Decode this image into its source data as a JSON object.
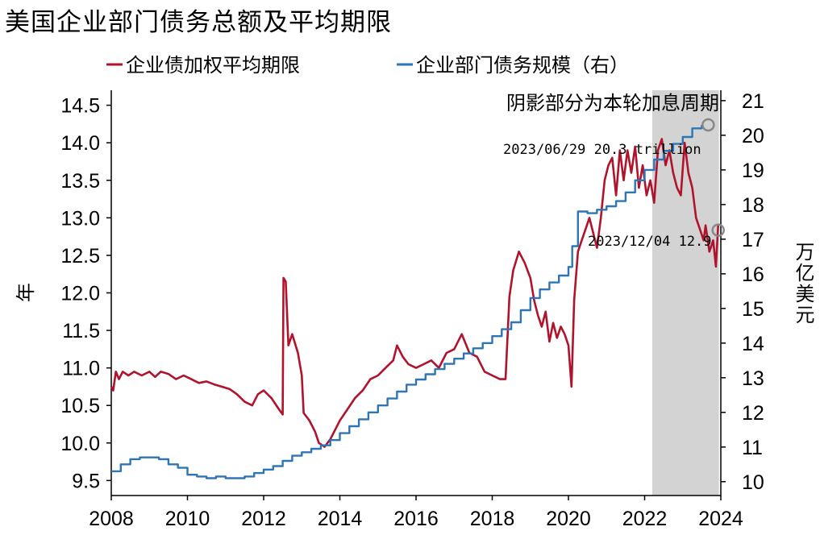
{
  "chart_data": {
    "type": "line",
    "title": "美国企业部门债务总额及平均期限",
    "xlabel": "",
    "ylabel_left": "年",
    "ylabel_right": "万亿美元",
    "xlim": [
      2008,
      2024
    ],
    "ylim_left": [
      9.3,
      14.7
    ],
    "ylim_right": [
      9.6,
      21.3
    ],
    "x_ticks": [
      "2008",
      "2010",
      "2012",
      "2014",
      "2016",
      "2018",
      "2020",
      "2022",
      "2024"
    ],
    "y_left_ticks": [
      "9.5",
      "10.0",
      "10.5",
      "11.0",
      "11.5",
      "12.0",
      "12.5",
      "13.0",
      "13.5",
      "14.0",
      "14.5"
    ],
    "y_right_ticks": [
      "10",
      "11",
      "12",
      "13",
      "14",
      "15",
      "16",
      "17",
      "18",
      "19",
      "20",
      "21"
    ],
    "legend_position": "top",
    "shaded_region": {
      "x": [
        2022.2,
        2023.95
      ],
      "label": "阴影部分为本轮加息周期",
      "color": "#d3d3d3"
    },
    "series": [
      {
        "name": "企业债加权平均期限",
        "axis": "left",
        "color": "#b0132b",
        "points": [
          [
            2008.0,
            10.75
          ],
          [
            2008.05,
            10.7
          ],
          [
            2008.12,
            10.95
          ],
          [
            2008.2,
            10.85
          ],
          [
            2008.3,
            10.95
          ],
          [
            2008.45,
            10.9
          ],
          [
            2008.6,
            10.95
          ],
          [
            2008.8,
            10.9
          ],
          [
            2009.0,
            10.95
          ],
          [
            2009.15,
            10.88
          ],
          [
            2009.3,
            10.95
          ],
          [
            2009.5,
            10.92
          ],
          [
            2009.7,
            10.85
          ],
          [
            2009.9,
            10.9
          ],
          [
            2010.1,
            10.85
          ],
          [
            2010.3,
            10.8
          ],
          [
            2010.5,
            10.82
          ],
          [
            2010.7,
            10.78
          ],
          [
            2010.9,
            10.75
          ],
          [
            2011.1,
            10.72
          ],
          [
            2011.3,
            10.65
          ],
          [
            2011.5,
            10.55
          ],
          [
            2011.7,
            10.5
          ],
          [
            2011.85,
            10.65
          ],
          [
            2012.0,
            10.7
          ],
          [
            2012.2,
            10.6
          ],
          [
            2012.4,
            10.45
          ],
          [
            2012.5,
            10.38
          ],
          [
            2012.52,
            12.2
          ],
          [
            2012.58,
            12.15
          ],
          [
            2012.65,
            11.3
          ],
          [
            2012.75,
            11.45
          ],
          [
            2012.9,
            11.2
          ],
          [
            2013.0,
            10.9
          ],
          [
            2013.05,
            10.4
          ],
          [
            2013.2,
            10.3
          ],
          [
            2013.35,
            10.15
          ],
          [
            2013.45,
            10.0
          ],
          [
            2013.6,
            9.95
          ],
          [
            2013.75,
            10.05
          ],
          [
            2013.9,
            10.2
          ],
          [
            2014.0,
            10.3
          ],
          [
            2014.2,
            10.45
          ],
          [
            2014.4,
            10.6
          ],
          [
            2014.6,
            10.7
          ],
          [
            2014.8,
            10.85
          ],
          [
            2015.0,
            10.9
          ],
          [
            2015.2,
            11.0
          ],
          [
            2015.4,
            11.1
          ],
          [
            2015.5,
            11.3
          ],
          [
            2015.65,
            11.15
          ],
          [
            2015.8,
            11.05
          ],
          [
            2016.0,
            11.0
          ],
          [
            2016.2,
            11.05
          ],
          [
            2016.4,
            11.1
          ],
          [
            2016.6,
            11.0
          ],
          [
            2016.8,
            11.2
          ],
          [
            2017.0,
            11.25
          ],
          [
            2017.2,
            11.45
          ],
          [
            2017.4,
            11.2
          ],
          [
            2017.6,
            11.15
          ],
          [
            2017.8,
            10.95
          ],
          [
            2018.0,
            10.9
          ],
          [
            2018.2,
            10.85
          ],
          [
            2018.35,
            10.85
          ],
          [
            2018.45,
            11.95
          ],
          [
            2018.55,
            12.3
          ],
          [
            2018.7,
            12.55
          ],
          [
            2018.85,
            12.4
          ],
          [
            2019.0,
            12.2
          ],
          [
            2019.1,
            11.9
          ],
          [
            2019.2,
            11.7
          ],
          [
            2019.3,
            11.55
          ],
          [
            2019.4,
            11.75
          ],
          [
            2019.5,
            11.35
          ],
          [
            2019.6,
            11.6
          ],
          [
            2019.7,
            11.4
          ],
          [
            2019.8,
            11.55
          ],
          [
            2019.9,
            11.45
          ],
          [
            2020.0,
            11.3
          ],
          [
            2020.08,
            10.75
          ],
          [
            2020.15,
            11.9
          ],
          [
            2020.25,
            12.55
          ],
          [
            2020.35,
            12.7
          ],
          [
            2020.45,
            12.85
          ],
          [
            2020.55,
            13.0
          ],
          [
            2020.65,
            12.8
          ],
          [
            2020.75,
            12.6
          ],
          [
            2020.85,
            13.0
          ],
          [
            2020.95,
            13.5
          ],
          [
            2021.05,
            13.7
          ],
          [
            2021.15,
            13.8
          ],
          [
            2021.25,
            13.3
          ],
          [
            2021.35,
            13.9
          ],
          [
            2021.45,
            13.5
          ],
          [
            2021.55,
            13.9
          ],
          [
            2021.65,
            13.6
          ],
          [
            2021.75,
            13.95
          ],
          [
            2021.85,
            13.4
          ],
          [
            2021.95,
            13.7
          ],
          [
            2022.05,
            13.3
          ],
          [
            2022.15,
            13.5
          ],
          [
            2022.25,
            13.2
          ],
          [
            2022.35,
            13.9
          ],
          [
            2022.45,
            14.05
          ],
          [
            2022.55,
            13.7
          ],
          [
            2022.65,
            13.9
          ],
          [
            2022.75,
            13.6
          ],
          [
            2022.85,
            13.4
          ],
          [
            2022.95,
            13.3
          ],
          [
            2023.05,
            14.0
          ],
          [
            2023.15,
            13.6
          ],
          [
            2023.25,
            13.4
          ],
          [
            2023.35,
            13.0
          ],
          [
            2023.45,
            12.85
          ],
          [
            2023.55,
            12.7
          ],
          [
            2023.6,
            12.9
          ],
          [
            2023.7,
            12.55
          ],
          [
            2023.8,
            12.7
          ],
          [
            2023.87,
            12.35
          ],
          [
            2023.93,
            12.9
          ]
        ]
      },
      {
        "name": "企业部门债务规模（右）",
        "axis": "right",
        "color": "#2e75b6",
        "points": [
          [
            2008.0,
            10.3
          ],
          [
            2008.25,
            10.5
          ],
          [
            2008.5,
            10.65
          ],
          [
            2008.75,
            10.7
          ],
          [
            2009.0,
            10.7
          ],
          [
            2009.25,
            10.65
          ],
          [
            2009.5,
            10.5
          ],
          [
            2009.75,
            10.4
          ],
          [
            2010.0,
            10.2
          ],
          [
            2010.25,
            10.15
          ],
          [
            2010.5,
            10.1
          ],
          [
            2010.75,
            10.15
          ],
          [
            2011.0,
            10.1
          ],
          [
            2011.25,
            10.1
          ],
          [
            2011.5,
            10.15
          ],
          [
            2011.75,
            10.25
          ],
          [
            2012.0,
            10.35
          ],
          [
            2012.25,
            10.45
          ],
          [
            2012.5,
            10.6
          ],
          [
            2012.75,
            10.75
          ],
          [
            2013.0,
            10.85
          ],
          [
            2013.25,
            10.95
          ],
          [
            2013.5,
            11.05
          ],
          [
            2013.75,
            11.2
          ],
          [
            2014.0,
            11.4
          ],
          [
            2014.25,
            11.6
          ],
          [
            2014.5,
            11.8
          ],
          [
            2014.75,
            12.0
          ],
          [
            2015.0,
            12.2
          ],
          [
            2015.25,
            12.4
          ],
          [
            2015.5,
            12.6
          ],
          [
            2015.75,
            12.8
          ],
          [
            2016.0,
            12.95
          ],
          [
            2016.25,
            13.1
          ],
          [
            2016.5,
            13.25
          ],
          [
            2016.75,
            13.4
          ],
          [
            2017.0,
            13.55
          ],
          [
            2017.25,
            13.7
          ],
          [
            2017.5,
            13.85
          ],
          [
            2017.75,
            14.0
          ],
          [
            2018.0,
            14.2
          ],
          [
            2018.25,
            14.4
          ],
          [
            2018.5,
            14.6
          ],
          [
            2018.75,
            14.95
          ],
          [
            2019.0,
            15.3
          ],
          [
            2019.25,
            15.55
          ],
          [
            2019.5,
            15.75
          ],
          [
            2019.75,
            15.95
          ],
          [
            2020.0,
            16.2
          ],
          [
            2020.1,
            16.8
          ],
          [
            2020.25,
            17.8
          ],
          [
            2020.5,
            17.75
          ],
          [
            2020.75,
            17.85
          ],
          [
            2021.0,
            17.95
          ],
          [
            2021.25,
            18.1
          ],
          [
            2021.5,
            18.35
          ],
          [
            2021.75,
            18.7
          ],
          [
            2022.0,
            19.0
          ],
          [
            2022.25,
            19.3
          ],
          [
            2022.5,
            19.55
          ],
          [
            2022.75,
            19.75
          ],
          [
            2023.0,
            19.95
          ],
          [
            2023.25,
            20.2
          ],
          [
            2023.5,
            20.3
          ]
        ]
      }
    ],
    "annotations": [
      {
        "text": "2023/06/29 20.3 trillion",
        "x": 2023.5,
        "y": 20.3,
        "axis": "right"
      },
      {
        "text": "2023/12/04 12.9",
        "x": 2023.93,
        "y": 12.9,
        "axis": "left"
      }
    ]
  }
}
